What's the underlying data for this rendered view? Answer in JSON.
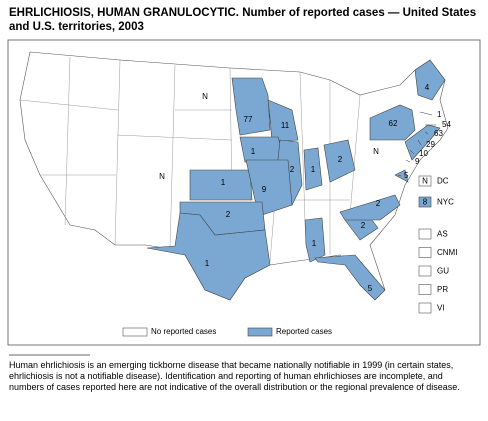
{
  "title": {
    "heading": "EHRLICHIOSIS, HUMAN GRANULOCYTIC.",
    "text": "Number of reported cases — United States and U.S. territories, 2003"
  },
  "map_labels": [
    "N",
    "77",
    "11",
    "1",
    "2",
    "1",
    "2",
    "N",
    "1",
    "9",
    "2",
    "1",
    "1",
    "5",
    "2",
    "2",
    "62",
    "4",
    "N",
    "1",
    "54",
    "63",
    "29",
    "10",
    "9",
    "5"
  ],
  "side_boxes": [
    {
      "value": "N",
      "label": "DC",
      "reported": false
    },
    {
      "value": "8",
      "label": "NYC",
      "reported": true
    }
  ],
  "territories": [
    "AS",
    "CNMI",
    "GU",
    "PR",
    "VI"
  ],
  "legend": [
    "No reported cases",
    "Reported cases"
  ],
  "footnote": "Human ehrlichiosis is an emerging tickborne disease that became nationally notifiable in 1999 (in certain states, ehrlichiosis is not a notifiable disease). Identification and reporting of human ehrlichioses are incomplete, and numbers of cases reported here are not indicative of the overall distribution or the regional prevalence of disease."
}
